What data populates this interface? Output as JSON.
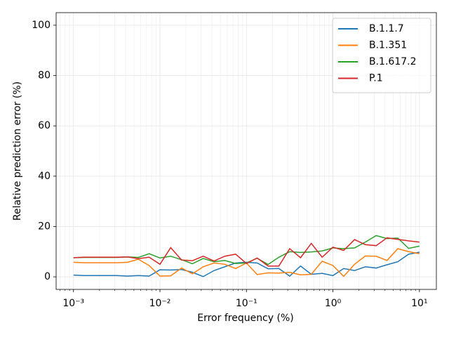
{
  "chart_data": {
    "type": "line",
    "xlabel": "Error frequency (%)",
    "ylabel": "Relative prediction error (%)",
    "x": [
      0.001,
      0.00133,
      0.00178,
      0.00237,
      0.00316,
      0.00422,
      0.00562,
      0.0075,
      0.01,
      0.0133,
      0.0178,
      0.0237,
      0.0316,
      0.0422,
      0.0562,
      0.075,
      0.1,
      0.133,
      0.178,
      0.237,
      0.316,
      0.422,
      0.562,
      0.75,
      1,
      1.33,
      1.78,
      2.37,
      3.16,
      4.22,
      5.62,
      7.5,
      10
    ],
    "series": [
      {
        "name": "B.1.1.7",
        "color": "#1f77b4",
        "values": [
          0.7,
          0.5,
          0.5,
          0.5,
          0.5,
          0.3,
          0.5,
          0.3,
          2.8,
          2.7,
          2.9,
          1.8,
          0.1,
          2.5,
          4.0,
          5.5,
          5.8,
          5.5,
          3.2,
          3.3,
          0.3,
          4.3,
          1.0,
          1.4,
          0.5,
          3.3,
          2.5,
          4.0,
          3.5,
          4.8,
          6.0,
          9.0,
          9.8
        ]
      },
      {
        "name": "B.1.351",
        "color": "#ff7f0e",
        "values": [
          5.8,
          5.6,
          5.6,
          5.6,
          5.6,
          5.8,
          7.0,
          4.5,
          0.3,
          0.4,
          3.5,
          1.2,
          4.0,
          5.5,
          5.0,
          3.3,
          5.5,
          0.9,
          1.6,
          1.5,
          1.8,
          0.8,
          1.0,
          6.2,
          4.5,
          0.2,
          5.0,
          8.3,
          8.2,
          6.5,
          11.2,
          10.0,
          9.2
        ]
      },
      {
        "name": "B.1.617.2",
        "color": "#2ca02c",
        "values": [
          7.6,
          7.7,
          7.7,
          7.7,
          7.7,
          7.9,
          7.7,
          9.2,
          7.5,
          8.2,
          6.8,
          5.2,
          7.3,
          6.0,
          6.5,
          5.3,
          5.5,
          7.4,
          4.9,
          7.8,
          10.0,
          9.7,
          9.9,
          10.3,
          11.5,
          11.2,
          11.5,
          13.8,
          16.4,
          15.2,
          15.4,
          11.3,
          12.2
        ]
      },
      {
        "name": "P.1",
        "color": "#d62728",
        "values": [
          7.6,
          7.8,
          7.8,
          7.8,
          7.8,
          7.9,
          7.2,
          7.8,
          5.0,
          11.6,
          6.7,
          6.4,
          8.2,
          6.3,
          8.2,
          9.0,
          5.3,
          7.5,
          4.3,
          4.3,
          11.2,
          7.6,
          13.3,
          7.8,
          11.8,
          10.5,
          14.8,
          12.8,
          12.4,
          15.5,
          14.9,
          14.3,
          13.8
        ]
      }
    ],
    "xscale": "log",
    "xlim": [
      0.00063,
      15.7
    ],
    "xticks": [
      {
        "value": 0.001,
        "label": "10⁻³"
      },
      {
        "value": 0.01,
        "label": "10⁻²"
      },
      {
        "value": 0.1,
        "label": "10⁻¹"
      },
      {
        "value": 1,
        "label": "10⁰"
      },
      {
        "value": 10,
        "label": "10¹"
      }
    ],
    "ylim": [
      -5,
      105
    ],
    "yticks": [
      0,
      20,
      40,
      60,
      80,
      100
    ],
    "grid": true,
    "minor_grid": true,
    "legend": "upper right"
  }
}
